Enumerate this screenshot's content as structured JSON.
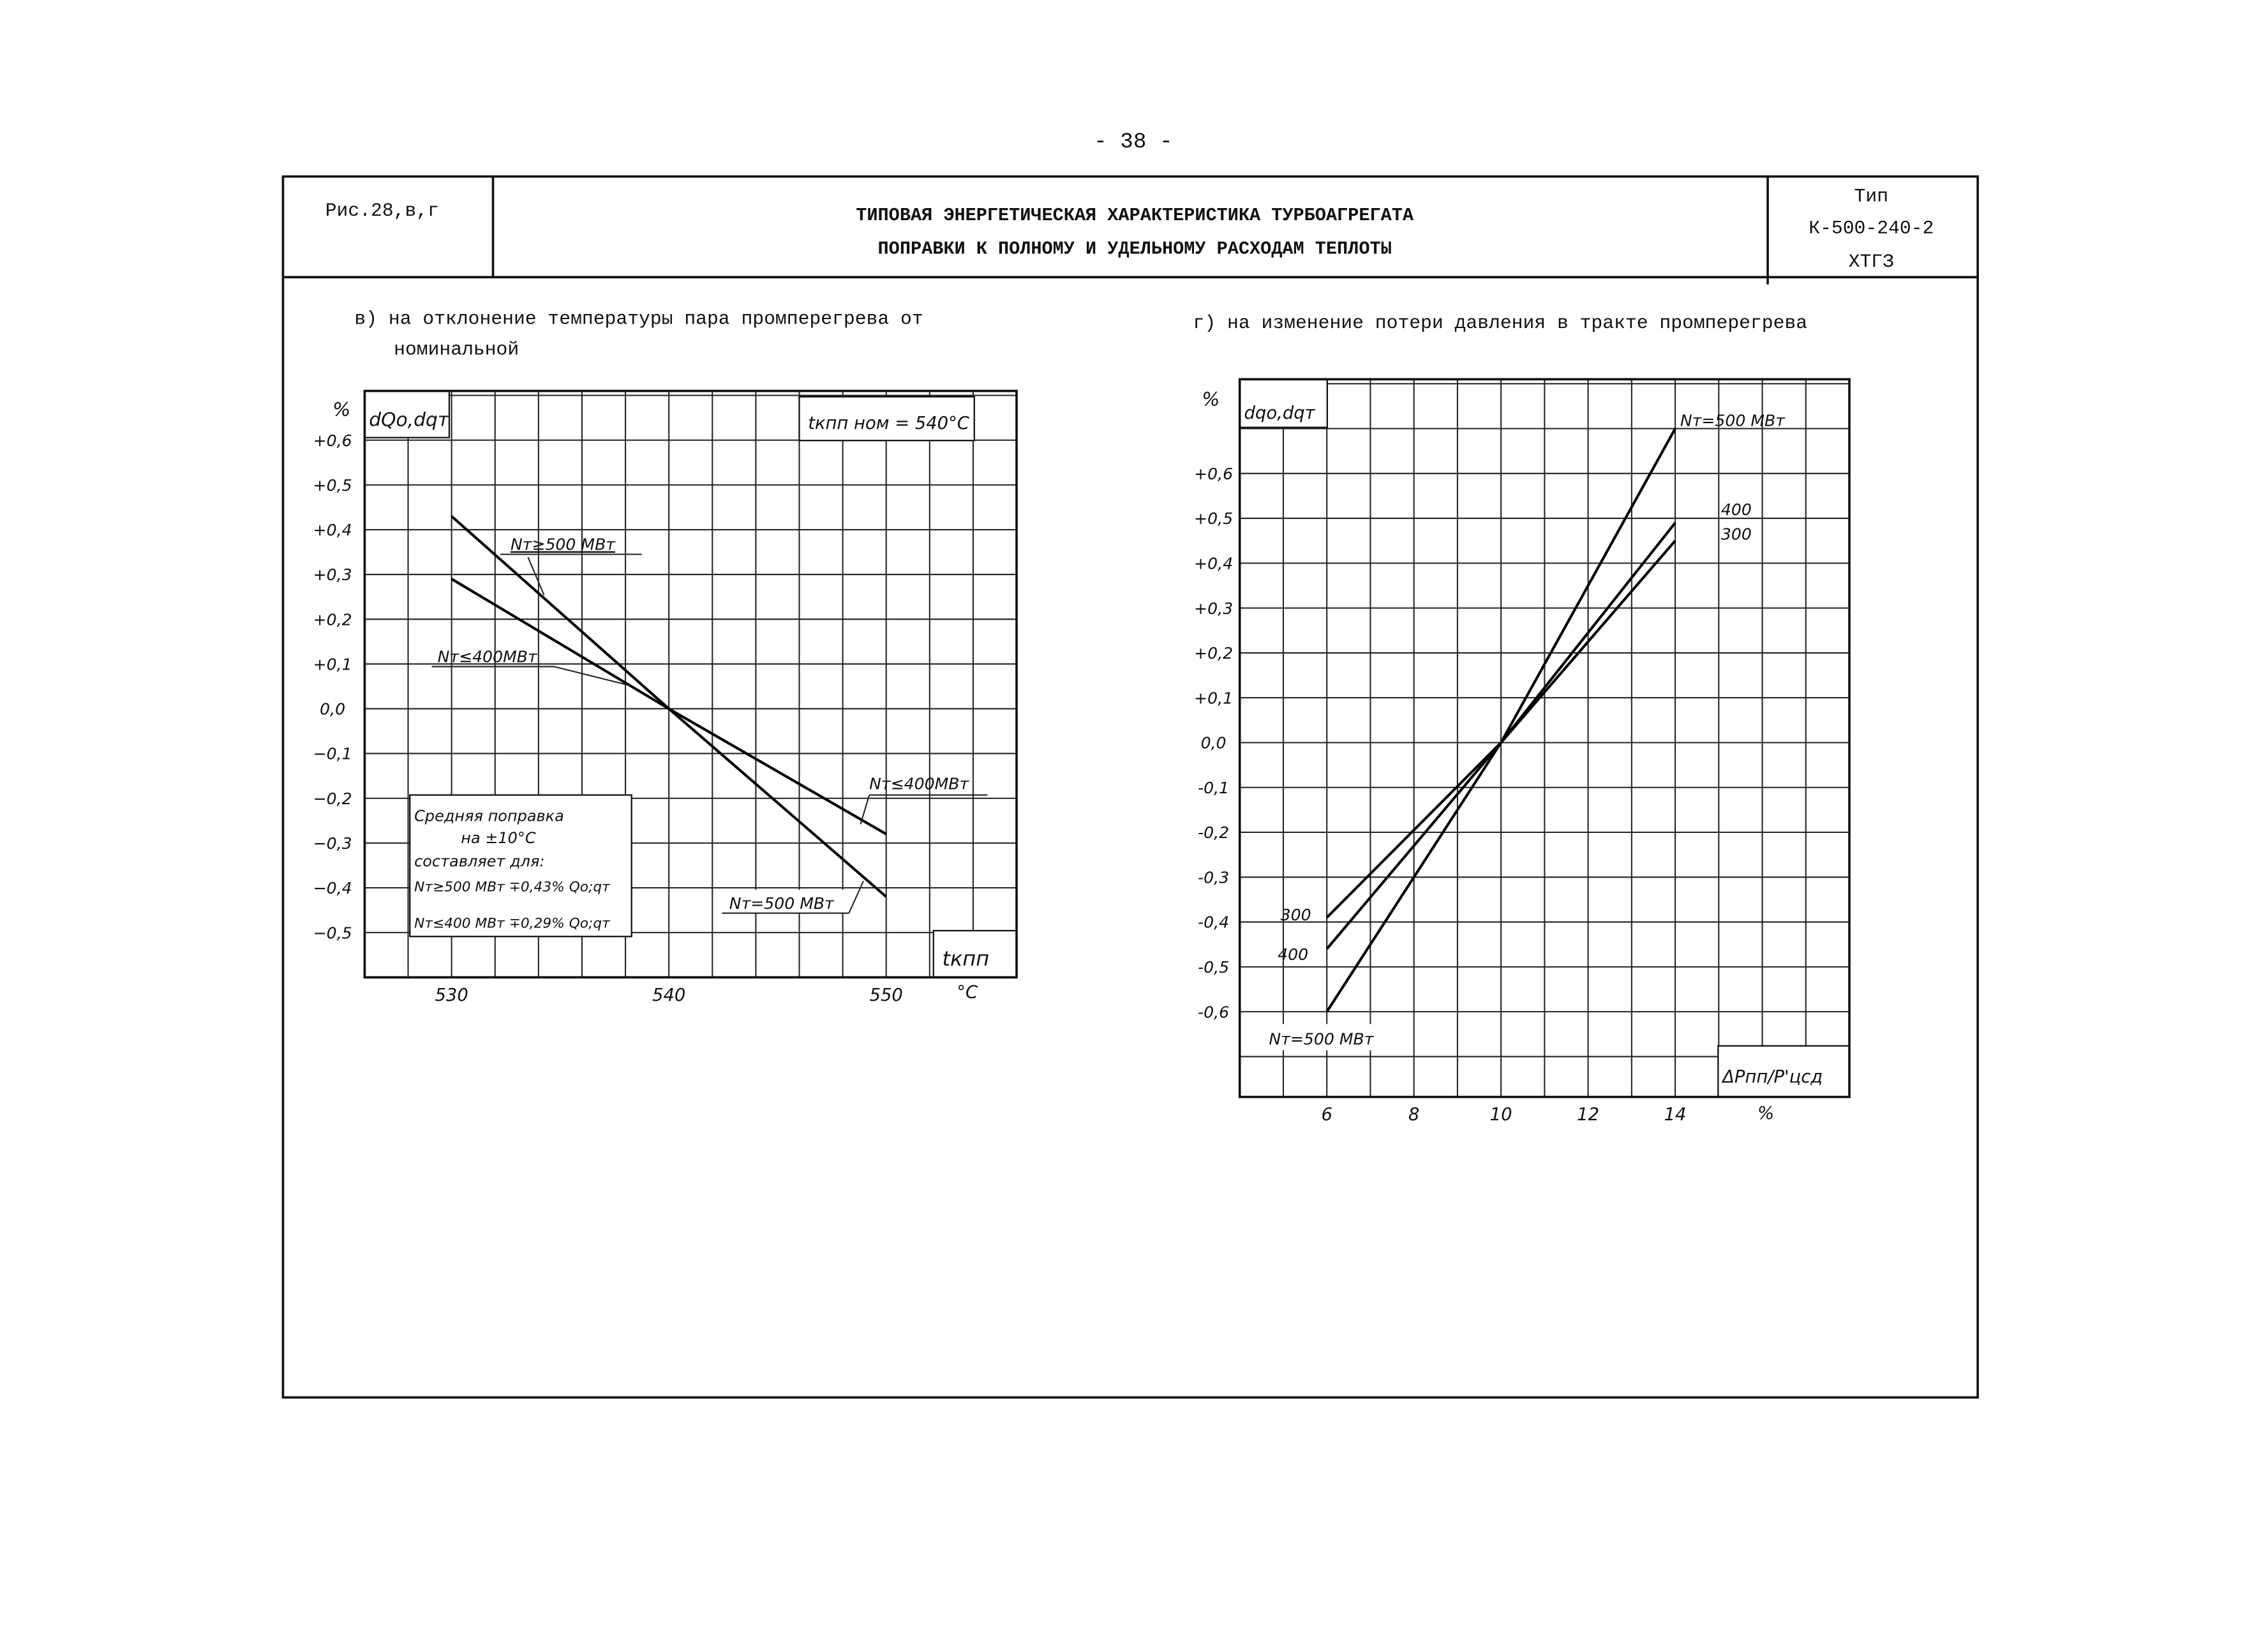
{
  "page_number": "- 38 -",
  "header": {
    "figure_ref": "Рис.28,в,г",
    "title_line1": "ТИПОВАЯ ЭНЕРГЕТИЧЕСКАЯ ХАРАКТЕРИСТИКА ТУРБОАГРЕГАТА",
    "title_line2": "ПОПРАВКИ К ПОЛНОМУ И УДЕЛЬНОМУ РАСХОДАМ ТЕПЛОТЫ",
    "type_label": "Тип",
    "type_model": "К-500-240-2",
    "type_maker": "ХТГЗ"
  },
  "captions": {
    "left_line1": "в) на отклонение температуры пара промперегрева от",
    "left_line2": "номинальной",
    "right": "г) на изменение потери давления в тракте промперегрева"
  },
  "chart_data": [
    {
      "type": "line",
      "title": "в) на отклонение температуры пара промперегрева от номинальной",
      "ylabel_unit": "%",
      "ylabel": "dQo,dqт",
      "xlabel": "tкпп",
      "xlabel_unit": "°C",
      "nominal_note": "tкпп ном = 540°C",
      "xlim": [
        526,
        556
      ],
      "ylim": [
        -0.6,
        0.71
      ],
      "x_ticks": [
        {
          "v": 530,
          "label": "530"
        },
        {
          "v": 540,
          "label": "540"
        },
        {
          "v": 550,
          "label": "550"
        }
      ],
      "y_ticks": [
        {
          "v": 0.6,
          "label": "+0,6"
        },
        {
          "v": 0.5,
          "label": "+0,5"
        },
        {
          "v": 0.4,
          "label": "+0,4"
        },
        {
          "v": 0.3,
          "label": "+0,3"
        },
        {
          "v": 0.2,
          "label": "+0,2"
        },
        {
          "v": 0.1,
          "label": "+0,1"
        },
        {
          "v": 0.0,
          "label": "0,0"
        },
        {
          "v": -0.1,
          "label": "−0,1"
        },
        {
          "v": -0.2,
          "label": "−0,2"
        },
        {
          "v": -0.3,
          "label": "−0,3"
        },
        {
          "v": -0.4,
          "label": "−0,4"
        },
        {
          "v": -0.5,
          "label": "−0,5"
        }
      ],
      "grid": true,
      "series": [
        {
          "name": "Nт≥500 МВт",
          "x": [
            530,
            540,
            550
          ],
          "y": [
            0.43,
            0.0,
            -0.42
          ]
        },
        {
          "name": "Nт≤400 МВт",
          "x": [
            530,
            540,
            550
          ],
          "y": [
            0.29,
            0.0,
            -0.28
          ]
        }
      ],
      "labels": {
        "s500_top": "Nт≥500 МВт",
        "s400_top": "Nт≤400МВт",
        "s400_bottom": "Nт≤400МВт",
        "s500_bottom": "Nт=500 МВт"
      },
      "note": [
        "Средняя поправка",
        "на ±10°C",
        "составляет для:",
        "Nт≥500 МВт ∓0,43% Qо;qт",
        "Nт≤400 МВт ∓0,29% Qо;qт"
      ]
    },
    {
      "type": "line",
      "title": "г) на изменение потери давления в тракте промперегрева",
      "ylabel_unit": "%",
      "ylabel": "dqо,dqт",
      "xlabel": "ΔPпп/P'цсд",
      "xlabel_unit": "%",
      "xlim": [
        4,
        18
      ],
      "ylim": [
        -0.79,
        0.81
      ],
      "x_ticks": [
        {
          "v": 6,
          "label": "6"
        },
        {
          "v": 8,
          "label": "8"
        },
        {
          "v": 10,
          "label": "10"
        },
        {
          "v": 12,
          "label": "12"
        },
        {
          "v": 14,
          "label": "14"
        }
      ],
      "y_ticks": [
        {
          "v": 0.6,
          "label": "+0,6"
        },
        {
          "v": 0.5,
          "label": "+0,5"
        },
        {
          "v": 0.4,
          "label": "+0,4"
        },
        {
          "v": 0.3,
          "label": "+0,3"
        },
        {
          "v": 0.2,
          "label": "+0,2"
        },
        {
          "v": 0.1,
          "label": "+0,1"
        },
        {
          "v": 0.0,
          "label": "0,0"
        },
        {
          "v": -0.1,
          "label": "-0,1"
        },
        {
          "v": -0.2,
          "label": "-0,2"
        },
        {
          "v": -0.3,
          "label": "-0,3"
        },
        {
          "v": -0.4,
          "label": "-0,4"
        },
        {
          "v": -0.5,
          "label": "-0,5"
        },
        {
          "v": -0.6,
          "label": "-0,6"
        }
      ],
      "grid": true,
      "series": [
        {
          "name": "Nт=500 МВт",
          "x": [
            6,
            10,
            14
          ],
          "y": [
            -0.6,
            0.0,
            0.7
          ]
        },
        {
          "name": "400",
          "x": [
            6,
            10,
            14
          ],
          "y": [
            -0.46,
            0.0,
            0.49
          ]
        },
        {
          "name": "300",
          "x": [
            6,
            10,
            14
          ],
          "y": [
            -0.39,
            0.0,
            0.45
          ]
        }
      ],
      "labels": {
        "s500_top": "Nт=500 МВт",
        "s400_top": "400",
        "s300_top": "300",
        "s300_bottom": "300",
        "s400_bottom": "400",
        "s500_bottom": "Nт=500 МВт"
      }
    }
  ]
}
